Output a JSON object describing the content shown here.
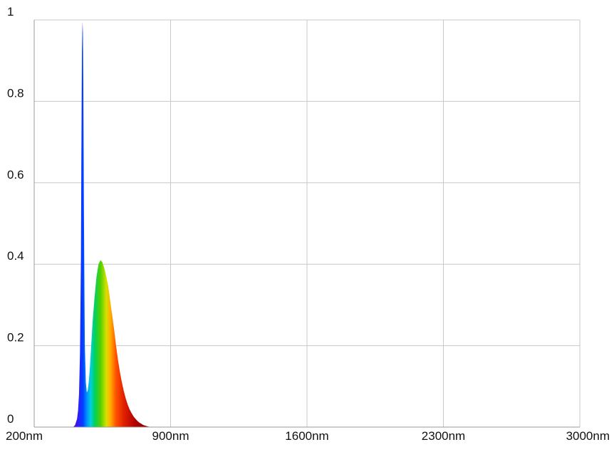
{
  "chart_data": {
    "type": "area",
    "title": "",
    "xlabel": "",
    "ylabel": "",
    "xlim": [
      200,
      3000
    ],
    "ylim": [
      0,
      1
    ],
    "grid": true,
    "legend": "none",
    "x_ticks": [
      200,
      900,
      1600,
      2300,
      3000
    ],
    "x_tick_labels": [
      "200nm",
      "900nm",
      "1600nm",
      "2300nm",
      "3000nm"
    ],
    "y_ticks": [
      0,
      0.2,
      0.4,
      0.6,
      0.8,
      1
    ],
    "y_tick_labels": [
      "0",
      "0.2",
      "0.4",
      "0.6",
      "0.8",
      "1"
    ],
    "fill": "wavelength spectrum gradient (violet to red)",
    "series": [
      {
        "x": [
          400,
          410,
          420,
          425,
          430,
          435,
          440,
          442,
          445,
          448,
          450,
          452,
          455,
          458,
          460,
          465,
          470,
          475,
          480,
          485,
          490,
          495,
          500,
          510,
          520,
          530,
          540,
          550,
          560,
          570,
          580,
          590,
          600,
          610,
          620,
          630,
          640,
          650,
          660,
          670,
          680,
          690,
          700,
          710,
          720,
          730,
          740,
          750,
          760,
          780,
          800
        ],
        "y": [
          0.0,
          0.005,
          0.02,
          0.04,
          0.08,
          0.18,
          0.42,
          0.65,
          0.92,
          0.995,
          0.97,
          0.85,
          0.55,
          0.32,
          0.2,
          0.11,
          0.085,
          0.09,
          0.11,
          0.14,
          0.18,
          0.22,
          0.26,
          0.32,
          0.37,
          0.4,
          0.41,
          0.405,
          0.39,
          0.37,
          0.345,
          0.31,
          0.275,
          0.24,
          0.2,
          0.165,
          0.135,
          0.11,
          0.088,
          0.07,
          0.055,
          0.043,
          0.034,
          0.026,
          0.02,
          0.015,
          0.011,
          0.008,
          0.005,
          0.002,
          0.0
        ]
      }
    ]
  }
}
